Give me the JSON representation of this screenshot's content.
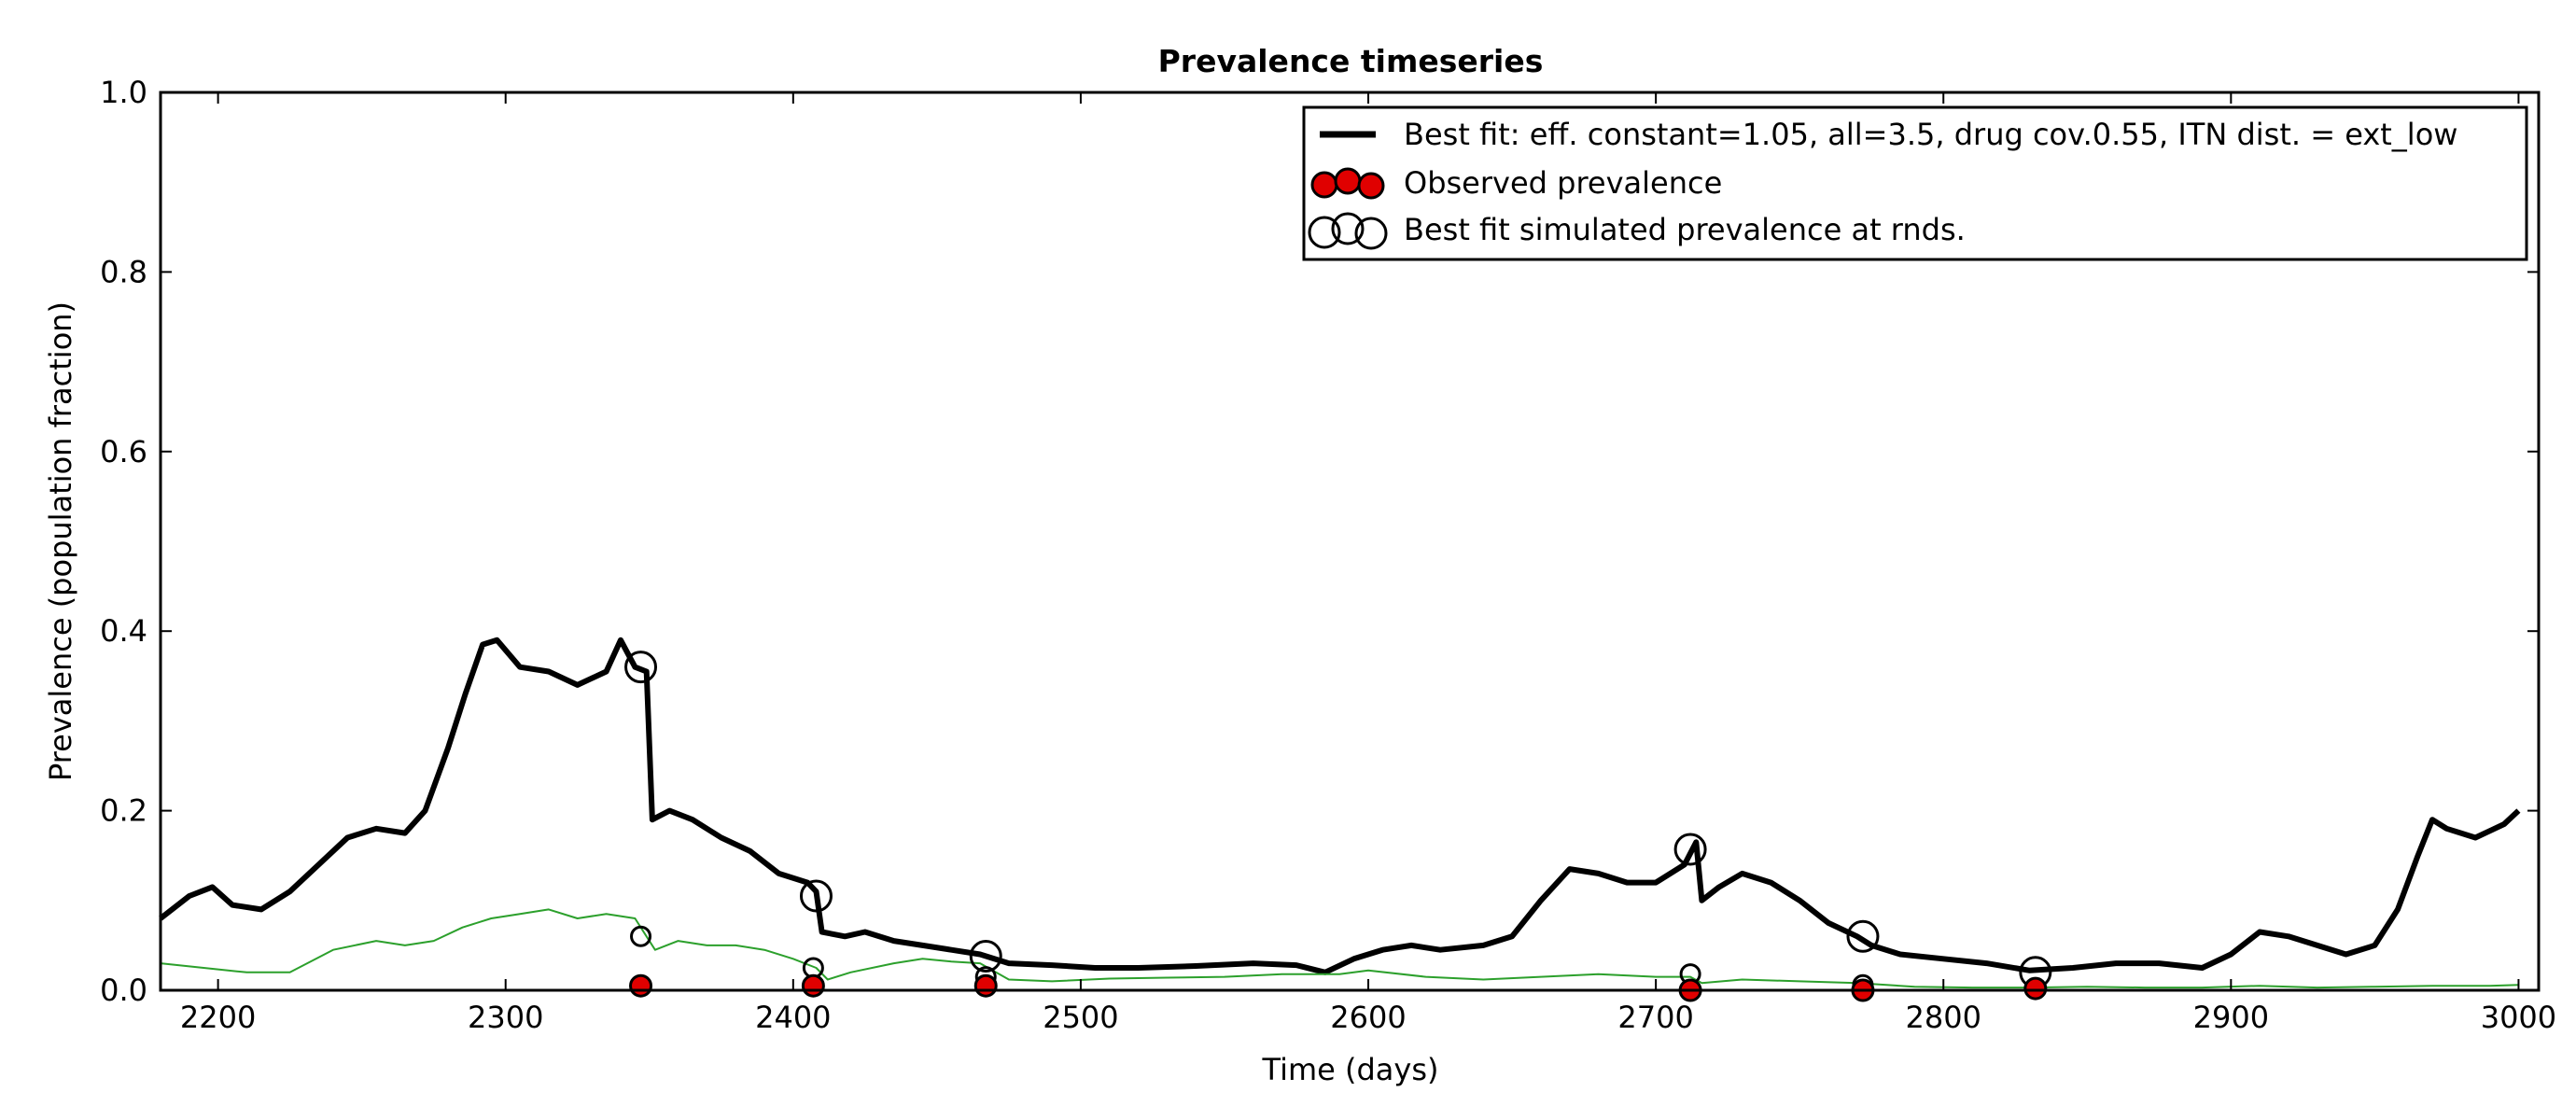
{
  "chart_data": {
    "type": "line",
    "title": "Prevalence timeseries",
    "xlabel": "Time (days)",
    "ylabel": "Prevalence (population fraction)",
    "xlim": [
      2180,
      3007
    ],
    "ylim": [
      0.0,
      1.0
    ],
    "xticks": [
      2200,
      2300,
      2400,
      2500,
      2600,
      2700,
      2800,
      2900,
      3000
    ],
    "yticks": [
      0.0,
      0.2,
      0.4,
      0.6,
      0.8,
      1.0
    ],
    "xtick_labels": [
      "2200",
      "2300",
      "2400",
      "2500",
      "2600",
      "2700",
      "2800",
      "2900",
      "3000"
    ],
    "ytick_labels": [
      "0.0",
      "0.2",
      "0.4",
      "0.6",
      "0.8",
      "1.0"
    ],
    "grid": false,
    "legend_position": "top-right",
    "colors": {
      "best_fit": "#000000",
      "secondary": "#2ca02c",
      "observed": "#e00000"
    },
    "legend": [
      {
        "label": "Best fit: eff. constant=1.05, all=3.5, drug cov.0.55, ITN dist. = ext_low",
        "marker": "line"
      },
      {
        "label": "Observed prevalence",
        "marker": "filled-circles"
      },
      {
        "label": "Best fit simulated prevalence at rnds.",
        "marker": "open-circles"
      }
    ],
    "series": [
      {
        "name": "Best fit: eff. constant=1.05, all=3.5, drug cov.0.55, ITN dist. = ext_low",
        "style": "line-thick",
        "points": [
          [
            2180,
            0.08
          ],
          [
            2190,
            0.105
          ],
          [
            2198,
            0.115
          ],
          [
            2205,
            0.095
          ],
          [
            2215,
            0.09
          ],
          [
            2225,
            0.11
          ],
          [
            2235,
            0.14
          ],
          [
            2245,
            0.17
          ],
          [
            2255,
            0.18
          ],
          [
            2265,
            0.175
          ],
          [
            2272,
            0.2
          ],
          [
            2280,
            0.27
          ],
          [
            2286,
            0.33
          ],
          [
            2292,
            0.385
          ],
          [
            2297,
            0.39
          ],
          [
            2305,
            0.36
          ],
          [
            2315,
            0.355
          ],
          [
            2325,
            0.34
          ],
          [
            2335,
            0.355
          ],
          [
            2340,
            0.39
          ],
          [
            2345,
            0.36
          ],
          [
            2349,
            0.355
          ],
          [
            2351,
            0.19
          ],
          [
            2357,
            0.2
          ],
          [
            2365,
            0.19
          ],
          [
            2375,
            0.17
          ],
          [
            2385,
            0.155
          ],
          [
            2395,
            0.13
          ],
          [
            2405,
            0.12
          ],
          [
            2408,
            0.11
          ],
          [
            2410,
            0.065
          ],
          [
            2418,
            0.06
          ],
          [
            2425,
            0.065
          ],
          [
            2435,
            0.055
          ],
          [
            2445,
            0.05
          ],
          [
            2455,
            0.045
          ],
          [
            2465,
            0.04
          ],
          [
            2475,
            0.03
          ],
          [
            2490,
            0.028
          ],
          [
            2505,
            0.025
          ],
          [
            2520,
            0.025
          ],
          [
            2540,
            0.027
          ],
          [
            2560,
            0.03
          ],
          [
            2575,
            0.028
          ],
          [
            2585,
            0.02
          ],
          [
            2595,
            0.035
          ],
          [
            2605,
            0.045
          ],
          [
            2615,
            0.05
          ],
          [
            2625,
            0.045
          ],
          [
            2640,
            0.05
          ],
          [
            2650,
            0.06
          ],
          [
            2660,
            0.1
          ],
          [
            2670,
            0.135
          ],
          [
            2680,
            0.13
          ],
          [
            2690,
            0.12
          ],
          [
            2700,
            0.12
          ],
          [
            2710,
            0.14
          ],
          [
            2714,
            0.165
          ],
          [
            2716,
            0.1
          ],
          [
            2722,
            0.115
          ],
          [
            2730,
            0.13
          ],
          [
            2740,
            0.12
          ],
          [
            2750,
            0.1
          ],
          [
            2760,
            0.075
          ],
          [
            2770,
            0.06
          ],
          [
            2775,
            0.05
          ],
          [
            2785,
            0.04
          ],
          [
            2800,
            0.035
          ],
          [
            2815,
            0.03
          ],
          [
            2830,
            0.022
          ],
          [
            2845,
            0.025
          ],
          [
            2860,
            0.03
          ],
          [
            2875,
            0.03
          ],
          [
            2890,
            0.025
          ],
          [
            2900,
            0.04
          ],
          [
            2910,
            0.065
          ],
          [
            2920,
            0.06
          ],
          [
            2930,
            0.05
          ],
          [
            2940,
            0.04
          ],
          [
            2950,
            0.05
          ],
          [
            2958,
            0.09
          ],
          [
            2965,
            0.15
          ],
          [
            2970,
            0.19
          ],
          [
            2975,
            0.18
          ],
          [
            2985,
            0.17
          ],
          [
            2995,
            0.185
          ],
          [
            3000,
            0.2
          ]
        ]
      },
      {
        "style": "line-thin",
        "points": [
          [
            2180,
            0.03
          ],
          [
            2195,
            0.025
          ],
          [
            2210,
            0.02
          ],
          [
            2225,
            0.02
          ],
          [
            2240,
            0.045
          ],
          [
            2255,
            0.055
          ],
          [
            2265,
            0.05
          ],
          [
            2275,
            0.055
          ],
          [
            2285,
            0.07
          ],
          [
            2295,
            0.08
          ],
          [
            2305,
            0.085
          ],
          [
            2315,
            0.09
          ],
          [
            2325,
            0.08
          ],
          [
            2335,
            0.085
          ],
          [
            2345,
            0.08
          ],
          [
            2349,
            0.06
          ],
          [
            2352,
            0.045
          ],
          [
            2360,
            0.055
          ],
          [
            2370,
            0.05
          ],
          [
            2380,
            0.05
          ],
          [
            2390,
            0.045
          ],
          [
            2400,
            0.035
          ],
          [
            2408,
            0.025
          ],
          [
            2412,
            0.012
          ],
          [
            2420,
            0.02
          ],
          [
            2435,
            0.03
          ],
          [
            2445,
            0.035
          ],
          [
            2455,
            0.032
          ],
          [
            2465,
            0.03
          ],
          [
            2475,
            0.012
          ],
          [
            2490,
            0.01
          ],
          [
            2510,
            0.013
          ],
          [
            2530,
            0.014
          ],
          [
            2550,
            0.015
          ],
          [
            2570,
            0.018
          ],
          [
            2590,
            0.018
          ],
          [
            2600,
            0.022
          ],
          [
            2620,
            0.015
          ],
          [
            2640,
            0.012
          ],
          [
            2660,
            0.015
          ],
          [
            2680,
            0.018
          ],
          [
            2700,
            0.015
          ],
          [
            2712,
            0.015
          ],
          [
            2716,
            0.008
          ],
          [
            2730,
            0.012
          ],
          [
            2750,
            0.01
          ],
          [
            2770,
            0.008
          ],
          [
            2790,
            0.004
          ],
          [
            2810,
            0.003
          ],
          [
            2830,
            0.003
          ],
          [
            2850,
            0.004
          ],
          [
            2870,
            0.003
          ],
          [
            2890,
            0.003
          ],
          [
            2910,
            0.005
          ],
          [
            2930,
            0.003
          ],
          [
            2950,
            0.004
          ],
          [
            2970,
            0.005
          ],
          [
            2990,
            0.005
          ],
          [
            3000,
            0.006
          ]
        ]
      }
    ],
    "observed_prevalence": {
      "name": "Observed prevalence",
      "x": [
        2347,
        2407,
        2467,
        2712,
        2772,
        2832
      ],
      "y": [
        0.005,
        0.005,
        0.005,
        0.0,
        0.0,
        0.002
      ]
    },
    "simulated_at_rounds": {
      "name": "Best fit simulated prevalence at rnds.",
      "x": [
        2347,
        2408,
        2467,
        2712,
        2772,
        2832
      ],
      "y": [
        0.36,
        0.105,
        0.038,
        0.157,
        0.06,
        0.02
      ]
    },
    "simulated_at_rounds_secondary": {
      "x": [
        2347,
        2407,
        2467,
        2712,
        2772,
        2832
      ],
      "y": [
        0.06,
        0.025,
        0.015,
        0.018,
        0.006,
        0.002
      ]
    }
  }
}
